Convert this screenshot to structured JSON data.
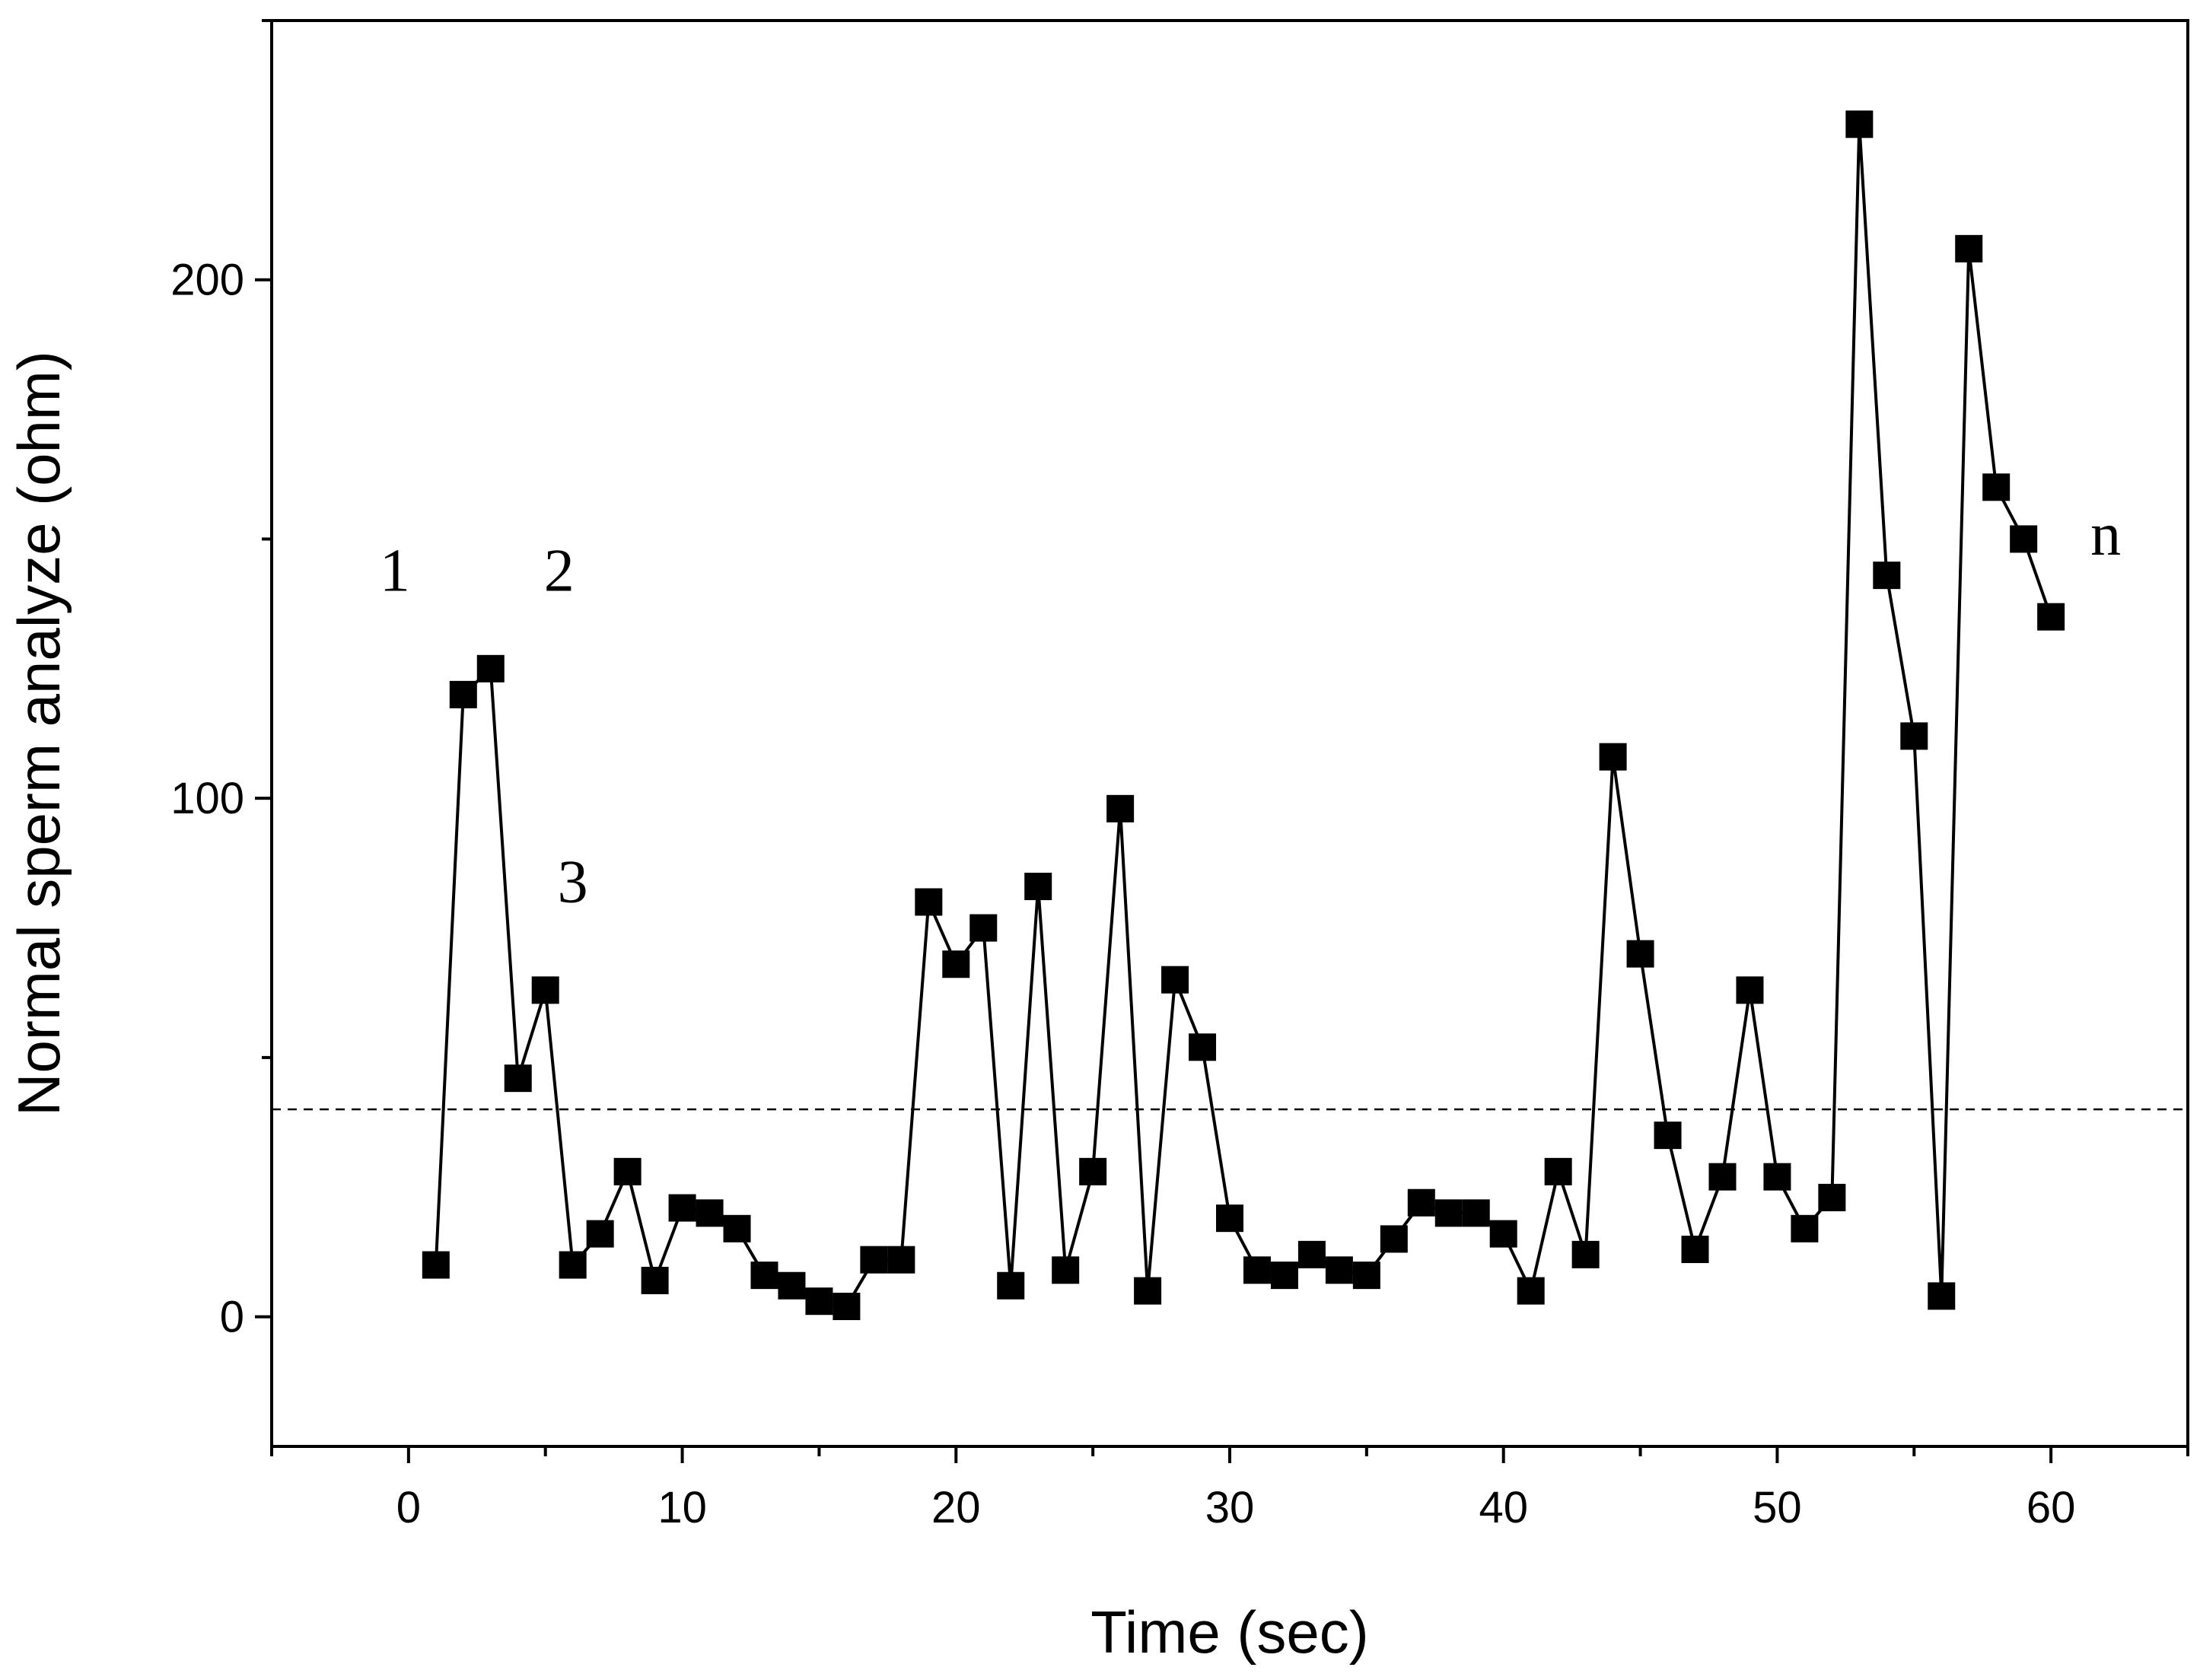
{
  "chart_data": {
    "type": "line",
    "title": "",
    "xlabel": "Time (sec)",
    "ylabel": "Normal sperm analyze (ohm)",
    "xlim": [
      -5,
      65
    ],
    "ylim": [
      -25,
      250
    ],
    "xticks": [
      0,
      10,
      20,
      30,
      40,
      50,
      60
    ],
    "yticks": [
      0,
      100,
      200
    ],
    "grid": false,
    "marker": "square",
    "color": "#000000",
    "threshold": {
      "y": 40,
      "style": "dashed"
    },
    "series": [
      {
        "name": "Normal sperm analyze",
        "x": [
          1,
          2,
          3,
          4,
          5,
          6,
          7,
          8,
          9,
          10,
          11,
          12,
          13,
          14,
          15,
          16,
          17,
          18,
          19,
          20,
          21,
          22,
          23,
          24,
          25,
          26,
          27,
          28,
          29,
          30,
          31,
          32,
          33,
          34,
          35,
          36,
          37,
          38,
          39,
          40,
          41,
          42,
          43,
          44,
          45,
          46,
          47,
          48,
          49,
          50,
          51,
          52,
          53,
          54,
          55,
          56,
          57,
          58,
          59,
          60
        ],
        "values": [
          10,
          120,
          125,
          46,
          63,
          10,
          16,
          28,
          7,
          21,
          20,
          17,
          8,
          6,
          3,
          2,
          11,
          11,
          80,
          68,
          75,
          6,
          83,
          9,
          28,
          98,
          5,
          65,
          52,
          19,
          9,
          8,
          12,
          9,
          8,
          15,
          22,
          20,
          20,
          16,
          5,
          28,
          12,
          108,
          70,
          35,
          13,
          27,
          63,
          27,
          17,
          23,
          230,
          143,
          112,
          4,
          206,
          160,
          150,
          135
        ]
      }
    ],
    "annotations": [
      {
        "text": "1",
        "x": -0.5,
        "y": 140
      },
      {
        "text": "2",
        "x": 5.5,
        "y": 140
      },
      {
        "text": "3",
        "x": 6,
        "y": 80
      },
      {
        "text": "n",
        "x": 62,
        "y": 147
      }
    ]
  }
}
